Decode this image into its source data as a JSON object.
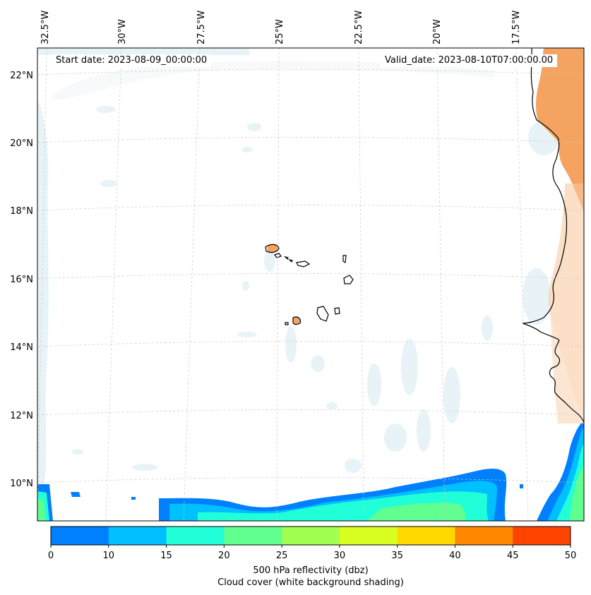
{
  "header": {
    "start_date": "Start date: 2023-08-09_00:00:00",
    "valid_date": "Valid_date: 2023-08-10T07:00:00.00"
  },
  "axes": {
    "longitude_labels": [
      "32.5°W",
      "30°W",
      "27.5°W",
      "25°W",
      "22.5°W",
      "20°W",
      "17.5°W"
    ],
    "latitude_labels": [
      "22°N",
      "20°N",
      "18°N",
      "16°N",
      "14°N",
      "12°N",
      "10°N"
    ]
  },
  "colorbar": {
    "ticks": [
      "0",
      "10",
      "15",
      "20",
      "25",
      "30",
      "35",
      "40",
      "45",
      "50"
    ],
    "title_line1": "500 hPa reflectivity (dbz)",
    "title_line2": "Cloud cover (white background shading)",
    "colors": [
      "#0080ff",
      "#00c0ff",
      "#20ffd8",
      "#60ff90",
      "#a0ff50",
      "#d8ff20",
      "#ffd800",
      "#ff8800",
      "#ff4400"
    ]
  },
  "colors": {
    "land": "#f4a460",
    "cloud": "#d6eaf0",
    "coastline": "#000000",
    "grid": "#c8c8c8"
  }
}
